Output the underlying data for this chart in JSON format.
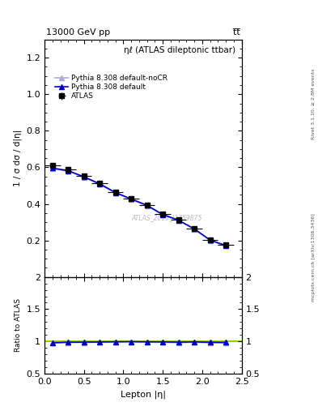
{
  "title_left": "13000 GeV pp",
  "title_right": "t̅t̅",
  "annotation": "ATLAS_2019_I1759875",
  "plot_title": "ηℓ (ATLAS dileptonic ttbar)",
  "xlabel": "Lepton |η|",
  "ylabel": "1 / σ dσ / d|η|",
  "right_label_top": "Rivet 3.1.10, ≥ 2.8M events",
  "right_label_bottom": "mcplots.cern.ch [arXiv:1306.3436]",
  "ratio_ylabel": "Ratio to ATLAS",
  "xlim": [
    0.0,
    2.5
  ],
  "ylim_main": [
    0.0,
    1.3
  ],
  "ylim_ratio": [
    0.5,
    2.0
  ],
  "atlas_x": [
    0.1,
    0.3,
    0.5,
    0.7,
    0.9,
    1.1,
    1.3,
    1.5,
    1.7,
    1.9,
    2.1,
    2.3
  ],
  "atlas_y": [
    0.61,
    0.59,
    0.555,
    0.515,
    0.465,
    0.43,
    0.395,
    0.345,
    0.315,
    0.265,
    0.205,
    0.175
  ],
  "atlas_xerr": [
    0.1,
    0.1,
    0.1,
    0.1,
    0.1,
    0.1,
    0.1,
    0.1,
    0.1,
    0.1,
    0.1,
    0.1
  ],
  "atlas_yerr": [
    0.01,
    0.008,
    0.008,
    0.007,
    0.007,
    0.007,
    0.007,
    0.007,
    0.007,
    0.007,
    0.008,
    0.01
  ],
  "pythia_default_x": [
    0.1,
    0.3,
    0.5,
    0.7,
    0.9,
    1.1,
    1.3,
    1.5,
    1.7,
    1.9,
    2.1,
    2.3
  ],
  "pythia_default_y": [
    0.596,
    0.582,
    0.548,
    0.51,
    0.462,
    0.427,
    0.392,
    0.342,
    0.311,
    0.263,
    0.202,
    0.172
  ],
  "pythia_nocr_x": [
    0.1,
    0.3,
    0.5,
    0.7,
    0.9,
    1.1,
    1.3,
    1.5,
    1.7,
    1.9,
    2.1,
    2.3
  ],
  "pythia_nocr_y": [
    0.592,
    0.579,
    0.545,
    0.507,
    0.459,
    0.424,
    0.389,
    0.339,
    0.308,
    0.261,
    0.2,
    0.17
  ],
  "ratio_pythia_default_y": [
    0.978,
    0.986,
    0.987,
    0.99,
    0.993,
    0.995,
    0.992,
    0.991,
    0.987,
    0.991,
    0.985,
    0.983
  ],
  "ratio_pythia_nocr_y": [
    0.97,
    0.981,
    0.982,
    0.984,
    0.987,
    0.988,
    0.985,
    0.984,
    0.978,
    0.985,
    0.976,
    0.971
  ],
  "atlas_color": "#000000",
  "pythia_default_color": "#0000cc",
  "pythia_nocr_color": "#aaaadd",
  "ratio_line_color": "#99cc00",
  "background_color": "#ffffff"
}
